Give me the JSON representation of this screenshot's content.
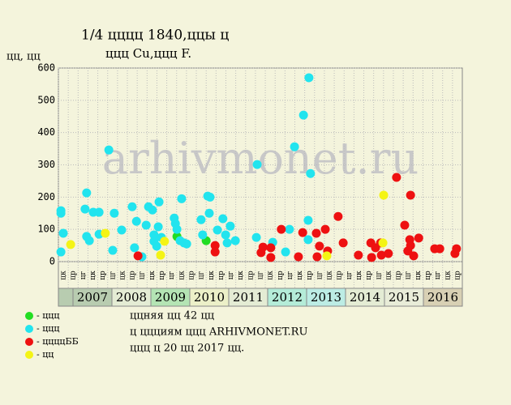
{
  "chart_data": {
    "type": "scatter",
    "title": "1/4 цццц 1840,ццы ц",
    "subtitle": "ццц Cu,ццц F.",
    "y_label": "цц, цц",
    "watermark": "arhivmonet.ru",
    "xlim": [
      2006.625,
      2017
    ],
    "ylim": [
      0,
      600
    ],
    "yticks": [
      0,
      100,
      200,
      300,
      400,
      500,
      600
    ],
    "xticks": [
      {
        "value": 2007.5,
        "label": "2007"
      },
      {
        "value": 2008.5,
        "label": "2008"
      },
      {
        "value": 2009.5,
        "label": "2009"
      },
      {
        "value": 2010.5,
        "label": "2010"
      },
      {
        "value": 2011.5,
        "label": "2011"
      },
      {
        "value": 2012.5,
        "label": "2012"
      },
      {
        "value": 2013.5,
        "label": "2013"
      },
      {
        "value": 2014.5,
        "label": "2014"
      },
      {
        "value": 2015.5,
        "label": "2015"
      },
      {
        "value": 2016.5,
        "label": "2016"
      }
    ],
    "band_colors": [
      "#b8ccb0",
      "#e4ecd4",
      "#b4e4b4",
      "#ecf0c8",
      "#e4ecd4",
      "#b4ecd8",
      "#bcece4",
      "#e4ecd4",
      "#e8ecd8",
      "#d8d0b4"
    ],
    "column_labels": [
      "цк",
      "цр",
      "цг",
      "цк",
      "цр",
      "цг",
      "цк",
      "цр",
      "цг",
      "цк",
      "цр",
      "цг",
      "цк",
      "цр",
      "цг",
      "цк",
      "цр",
      "цг",
      "цк",
      "цр",
      "цг",
      "цк",
      "цр",
      "цг",
      "цк",
      "цр",
      "цг",
      "цк",
      "цр",
      "цг",
      "цк",
      "цр",
      "цг",
      "цк",
      "цр",
      "цг",
      "цк",
      "цр",
      "цг",
      "цк",
      "цр"
    ],
    "grid": true,
    "series": [
      {
        "name": "- ццц",
        "color": "#22dd22",
        "x": [
          2009.67,
          2010.42
        ],
        "values": [
          78,
          65
        ]
      },
      {
        "name": "- ццц",
        "color": "#22e4ee",
        "x": [
          2006.69,
          2006.69,
          2006.75,
          2006.69,
          2007.35,
          2007.31,
          2007.35,
          2007.42,
          2007.52,
          2007.67,
          2007.67,
          2007.92,
          2008.02,
          2008.06,
          2008.25,
          2008.52,
          2008.58,
          2008.63,
          2008.77,
          2008.88,
          2008.94,
          2009.04,
          2009.08,
          2009.15,
          2009.08,
          2009.21,
          2009.19,
          2009.27,
          2009.6,
          2009.63,
          2009.67,
          2009.75,
          2009.79,
          2009.85,
          2009.92,
          2010.29,
          2010.33,
          2010.46,
          2010.52,
          2010.5,
          2010.71,
          2010.85,
          2010.92,
          2010.96,
          2011.04,
          2011.17,
          2011.71,
          2011.73,
          2012.13,
          2012.46,
          2012.56,
          2012.69,
          2012.92,
          2013.06,
          2013.04,
          2013.04,
          2013.1
        ],
        "values": [
          158,
          150,
          88,
          30,
          213,
          163,
          78,
          65,
          153,
          153,
          85,
          346,
          35,
          150,
          98,
          170,
          43,
          125,
          15,
          113,
          170,
          160,
          83,
          48,
          63,
          185,
          108,
          75,
          135,
          118,
          100,
          65,
          195,
          58,
          55,
          130,
          83,
          203,
          200,
          150,
          98,
          133,
          83,
          58,
          110,
          65,
          75,
          301,
          60,
          30,
          100,
          356,
          454,
          570,
          128,
          68,
          273
        ]
      },
      {
        "name": "- ццццББ",
        "color": "#ee1111",
        "x": [
          2008.67,
          2010.65,
          2010.65,
          2011.83,
          2011.88,
          2012.08,
          2012.08,
          2012.35,
          2012.79,
          2012.9,
          2013.25,
          2013.27,
          2013.33,
          2013.54,
          2013.48,
          2013.81,
          2013.94,
          2014.33,
          2014.65,
          2014.67,
          2014.77,
          2014.92,
          2014.9,
          2015.1,
          2015.31,
          2015.52,
          2015.6,
          2015.67,
          2015.65,
          2015.67,
          2015.75,
          2015.88,
          2016.29,
          2016.42,
          2016.81,
          2016.85
        ],
        "values": [
          18,
          50,
          30,
          28,
          45,
          43,
          13,
          100,
          15,
          90,
          88,
          15,
          48,
          33,
          100,
          140,
          58,
          20,
          58,
          13,
          43,
          20,
          58,
          25,
          261,
          113,
          33,
          206,
          68,
          50,
          18,
          73,
          40,
          40,
          25,
          40
        ]
      },
      {
        "name": "- цц",
        "color": "#f4f414",
        "x": [
          2006.94,
          2007.83,
          2009.25,
          2009.35,
          2013.52,
          2014.98,
          2014.96
        ],
        "values": [
          53,
          88,
          20,
          63,
          18,
          206,
          58
        ]
      }
    ],
    "notes": [
      "ццняя цц 42 цц",
      "ц ццциям ццц ARHIVMONET.RU",
      "ццц ц 20 цц 2017 цц."
    ]
  }
}
